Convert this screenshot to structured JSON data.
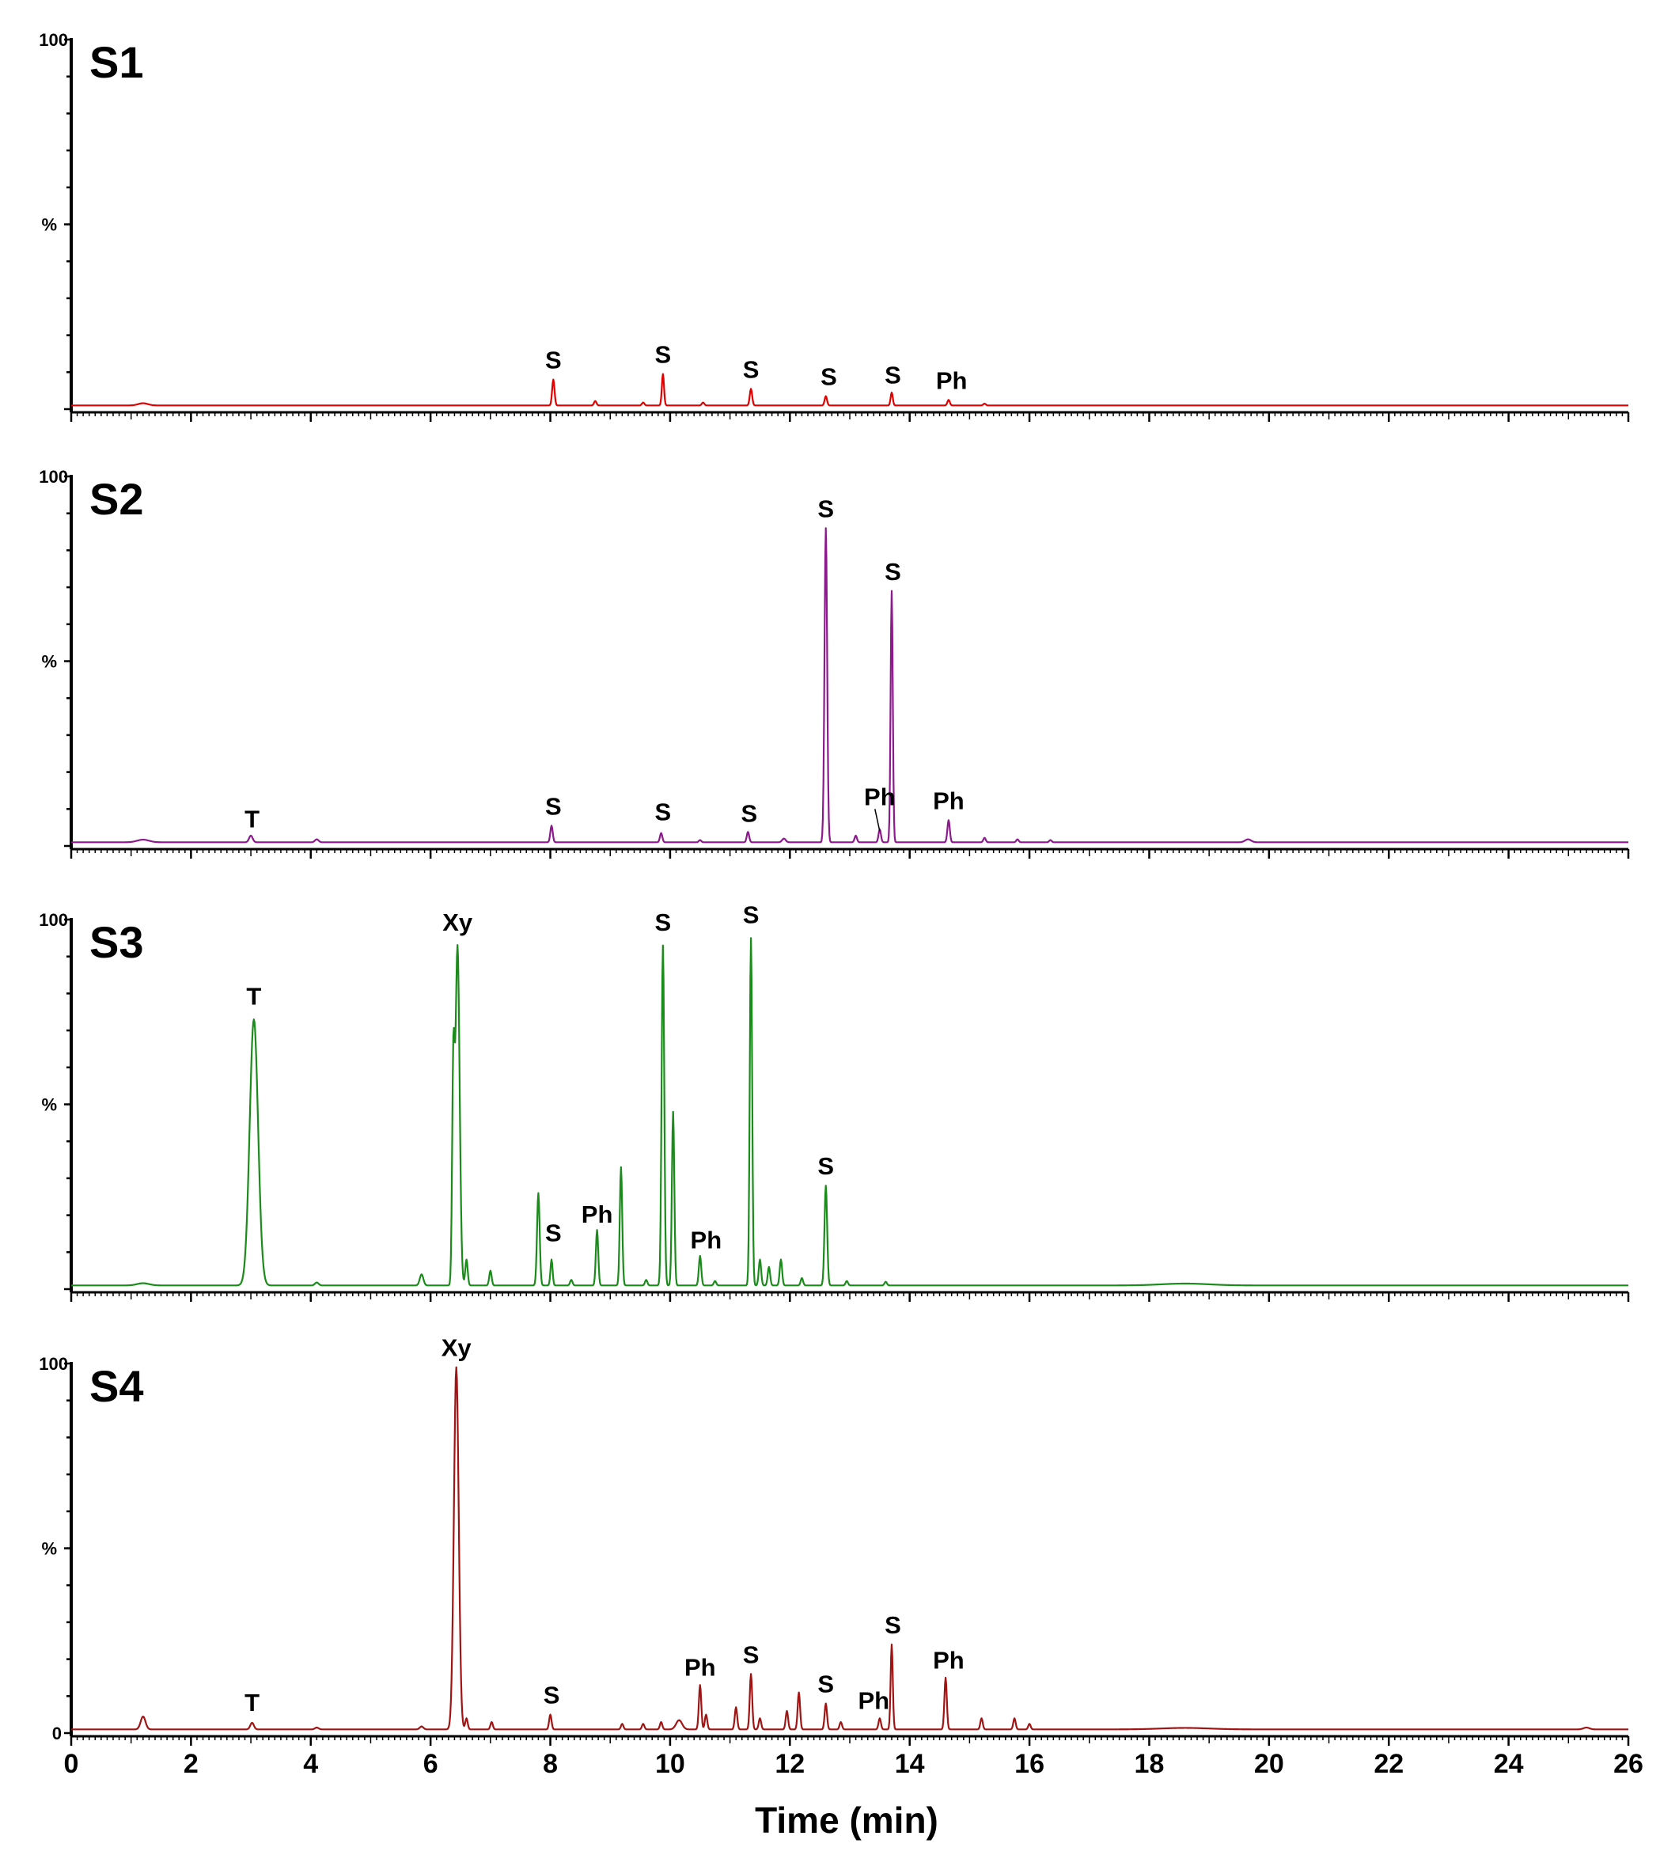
{
  "chart_data": {
    "type": "line",
    "xlabel": "Time (min)",
    "xlim": [
      0,
      26
    ],
    "xticks": [
      0,
      2,
      4,
      6,
      8,
      10,
      12,
      14,
      16,
      18,
      20,
      22,
      24,
      26
    ],
    "ylabel": "%",
    "ylim": [
      0,
      100
    ],
    "panels": [
      {
        "label": "S1",
        "color": "#e00000",
        "y_tick_top": "100",
        "y_tick_bottom": "",
        "baseline": 1,
        "peaks": [
          {
            "t": 1.2,
            "h": 0.6,
            "w": 0.08
          },
          {
            "t": 8.05,
            "h": 7,
            "w": 0.02
          },
          {
            "t": 8.75,
            "h": 1.2,
            "w": 0.02
          },
          {
            "t": 9.55,
            "h": 0.8,
            "w": 0.02
          },
          {
            "t": 9.88,
            "h": 8.5,
            "w": 0.018
          },
          {
            "t": 10.55,
            "h": 0.8,
            "w": 0.02
          },
          {
            "t": 11.35,
            "h": 4.5,
            "w": 0.02
          },
          {
            "t": 12.6,
            "h": 2.5,
            "w": 0.02
          },
          {
            "t": 13.7,
            "h": 3.5,
            "w": 0.018
          },
          {
            "t": 14.65,
            "h": 1.5,
            "w": 0.02
          },
          {
            "t": 15.25,
            "h": 0.5,
            "w": 0.02
          }
        ],
        "annotations": [
          {
            "text": "S",
            "t": 8.05,
            "y": 11
          },
          {
            "text": "S",
            "t": 9.88,
            "y": 12.5
          },
          {
            "text": "S",
            "t": 11.35,
            "y": 8.5
          },
          {
            "text": "S",
            "t": 12.65,
            "y": 6.5
          },
          {
            "text": "S",
            "t": 13.72,
            "y": 7
          },
          {
            "text": "Ph",
            "t": 14.7,
            "y": 5.5
          }
        ]
      },
      {
        "label": "S2",
        "color": "#8c1a8c",
        "y_tick_top": "100",
        "y_tick_bottom": "",
        "baseline": 1,
        "peaks": [
          {
            "t": 1.2,
            "h": 0.7,
            "w": 0.1
          },
          {
            "t": 3.0,
            "h": 1.8,
            "w": 0.03
          },
          {
            "t": 4.1,
            "h": 0.8,
            "w": 0.03
          },
          {
            "t": 8.02,
            "h": 4.5,
            "w": 0.02
          },
          {
            "t": 9.85,
            "h": 2.5,
            "w": 0.02
          },
          {
            "t": 10.5,
            "h": 0.6,
            "w": 0.02
          },
          {
            "t": 11.3,
            "h": 2.8,
            "w": 0.02
          },
          {
            "t": 11.9,
            "h": 1.0,
            "w": 0.03
          },
          {
            "t": 12.6,
            "h": 85,
            "w": 0.022
          },
          {
            "t": 13.1,
            "h": 1.8,
            "w": 0.02
          },
          {
            "t": 13.5,
            "h": 3.5,
            "w": 0.02
          },
          {
            "t": 13.7,
            "h": 68,
            "w": 0.018
          },
          {
            "t": 14.65,
            "h": 6,
            "w": 0.02
          },
          {
            "t": 15.25,
            "h": 1.2,
            "w": 0.02
          },
          {
            "t": 15.8,
            "h": 0.8,
            "w": 0.02
          },
          {
            "t": 16.35,
            "h": 0.6,
            "w": 0.02
          },
          {
            "t": 19.65,
            "h": 0.8,
            "w": 0.05
          }
        ],
        "annotations": [
          {
            "text": "T",
            "t": 3.02,
            "y": 5
          },
          {
            "text": "S",
            "t": 8.05,
            "y": 8.5
          },
          {
            "text": "S",
            "t": 9.88,
            "y": 7
          },
          {
            "text": "S",
            "t": 11.32,
            "y": 6.5
          },
          {
            "text": "S",
            "t": 12.6,
            "y": 89
          },
          {
            "text": "S",
            "t": 13.72,
            "y": 72
          },
          {
            "text": "Ph",
            "t": 13.5,
            "y": 11
          },
          {
            "text": "Ph",
            "t": 14.65,
            "y": 10
          }
        ]
      },
      {
        "label": "S3",
        "color": "#1a8c1a",
        "y_tick_top": "100",
        "y_tick_bottom": "",
        "baseline": 1,
        "peaks": [
          {
            "t": 1.2,
            "h": 0.6,
            "w": 0.1
          },
          {
            "t": 3.05,
            "h": 72,
            "w": 0.07
          },
          {
            "t": 4.1,
            "h": 0.8,
            "w": 0.03
          },
          {
            "t": 5.85,
            "h": 3,
            "w": 0.03
          },
          {
            "t": 6.38,
            "h": 55,
            "w": 0.02
          },
          {
            "t": 6.45,
            "h": 92,
            "w": 0.035
          },
          {
            "t": 6.6,
            "h": 7,
            "w": 0.02
          },
          {
            "t": 7.0,
            "h": 4,
            "w": 0.02
          },
          {
            "t": 7.8,
            "h": 25,
            "w": 0.022
          },
          {
            "t": 8.02,
            "h": 7,
            "w": 0.018
          },
          {
            "t": 8.35,
            "h": 1.5,
            "w": 0.02
          },
          {
            "t": 8.78,
            "h": 15,
            "w": 0.02
          },
          {
            "t": 9.18,
            "h": 32,
            "w": 0.02
          },
          {
            "t": 9.6,
            "h": 1.5,
            "w": 0.02
          },
          {
            "t": 9.88,
            "h": 92,
            "w": 0.022
          },
          {
            "t": 10.05,
            "h": 47,
            "w": 0.02
          },
          {
            "t": 10.5,
            "h": 8,
            "w": 0.02
          },
          {
            "t": 10.75,
            "h": 1.2,
            "w": 0.02
          },
          {
            "t": 11.35,
            "h": 94,
            "w": 0.02
          },
          {
            "t": 11.5,
            "h": 7,
            "w": 0.02
          },
          {
            "t": 11.65,
            "h": 5,
            "w": 0.02
          },
          {
            "t": 11.85,
            "h": 7,
            "w": 0.02
          },
          {
            "t": 12.2,
            "h": 2,
            "w": 0.02
          },
          {
            "t": 12.6,
            "h": 27,
            "w": 0.022
          },
          {
            "t": 12.95,
            "h": 1.2,
            "w": 0.02
          },
          {
            "t": 13.6,
            "h": 1.0,
            "w": 0.02
          },
          {
            "t": 18.6,
            "h": 0.5,
            "w": 0.4
          }
        ],
        "annotations": [
          {
            "text": "T",
            "t": 3.05,
            "y": 77
          },
          {
            "text": "Xy",
            "t": 6.45,
            "y": 97
          },
          {
            "text": "S",
            "t": 8.05,
            "y": 13
          },
          {
            "text": "Ph",
            "t": 8.78,
            "y": 18
          },
          {
            "text": "S",
            "t": 9.88,
            "y": 97
          },
          {
            "text": "Ph",
            "t": 10.6,
            "y": 11
          },
          {
            "text": "S",
            "t": 11.35,
            "y": 99
          },
          {
            "text": "S",
            "t": 12.6,
            "y": 31
          }
        ]
      },
      {
        "label": "S4",
        "color": "#a01414",
        "y_tick_top": "100",
        "y_tick_bottom": "0",
        "baseline": 1,
        "peaks": [
          {
            "t": 1.2,
            "h": 3.5,
            "w": 0.04
          },
          {
            "t": 3.02,
            "h": 1.8,
            "w": 0.03
          },
          {
            "t": 4.1,
            "h": 0.5,
            "w": 0.03
          },
          {
            "t": 5.85,
            "h": 0.8,
            "w": 0.03
          },
          {
            "t": 6.43,
            "h": 98,
            "w": 0.04
          },
          {
            "t": 6.6,
            "h": 3,
            "w": 0.02
          },
          {
            "t": 7.02,
            "h": 2,
            "w": 0.02
          },
          {
            "t": 8.0,
            "h": 4,
            "w": 0.02
          },
          {
            "t": 9.2,
            "h": 1.5,
            "w": 0.02
          },
          {
            "t": 9.55,
            "h": 1.5,
            "w": 0.02
          },
          {
            "t": 9.85,
            "h": 2.0,
            "w": 0.02
          },
          {
            "t": 10.15,
            "h": 2.5,
            "w": 0.05
          },
          {
            "t": 10.5,
            "h": 12,
            "w": 0.02
          },
          {
            "t": 10.6,
            "h": 4,
            "w": 0.02
          },
          {
            "t": 11.1,
            "h": 6,
            "w": 0.02
          },
          {
            "t": 11.35,
            "h": 15,
            "w": 0.02
          },
          {
            "t": 11.5,
            "h": 3,
            "w": 0.02
          },
          {
            "t": 11.95,
            "h": 5,
            "w": 0.02
          },
          {
            "t": 12.15,
            "h": 10,
            "w": 0.02
          },
          {
            "t": 12.6,
            "h": 7,
            "w": 0.02
          },
          {
            "t": 12.85,
            "h": 2,
            "w": 0.02
          },
          {
            "t": 13.5,
            "h": 3,
            "w": 0.02
          },
          {
            "t": 13.7,
            "h": 23,
            "w": 0.018
          },
          {
            "t": 14.6,
            "h": 14,
            "w": 0.02
          },
          {
            "t": 15.2,
            "h": 3,
            "w": 0.02
          },
          {
            "t": 15.75,
            "h": 3,
            "w": 0.02
          },
          {
            "t": 16.0,
            "h": 1.5,
            "w": 0.02
          },
          {
            "t": 18.6,
            "h": 0.4,
            "w": 0.4
          },
          {
            "t": 25.3,
            "h": 0.5,
            "w": 0.05
          }
        ],
        "annotations": [
          {
            "text": "T",
            "t": 3.02,
            "y": 6
          },
          {
            "text": "Xy",
            "t": 6.43,
            "y": 102
          },
          {
            "text": "S",
            "t": 8.02,
            "y": 8
          },
          {
            "text": "Ph",
            "t": 10.5,
            "y": 15.5
          },
          {
            "text": "S",
            "t": 11.35,
            "y": 19
          },
          {
            "text": "S",
            "t": 12.6,
            "y": 11
          },
          {
            "text": "Ph",
            "t": 13.4,
            "y": 6.5
          },
          {
            "text": "S",
            "t": 13.72,
            "y": 27
          },
          {
            "text": "Ph",
            "t": 14.65,
            "y": 17.5
          }
        ]
      }
    ]
  }
}
